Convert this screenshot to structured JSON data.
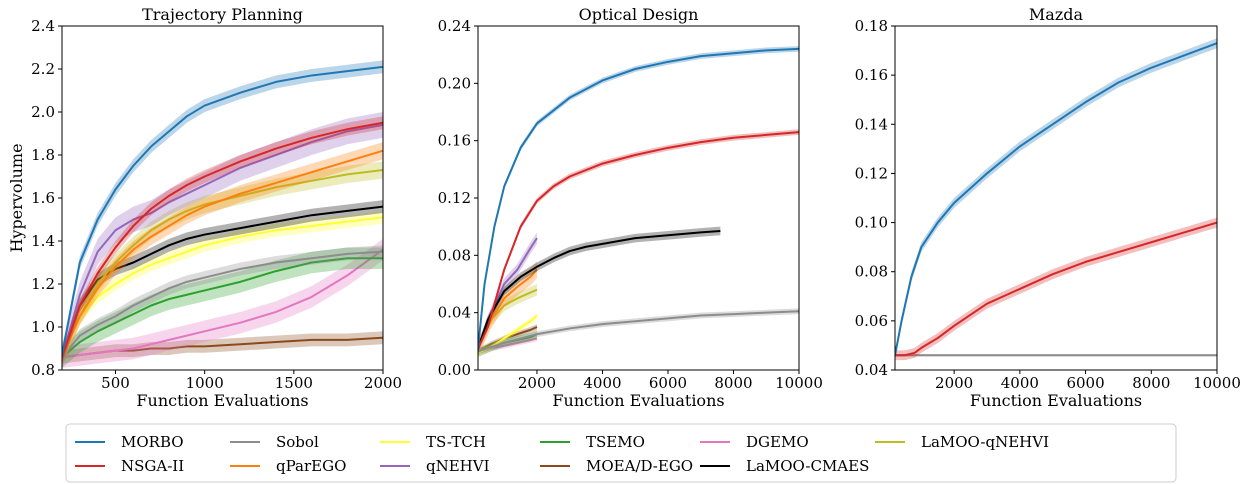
{
  "colors": {
    "MORBO": "#1f77b4",
    "NSGA-II": "#d62728",
    "Sobol": "#8c8c8c",
    "qParEGO": "#ff7f0e",
    "TS-TCH": "#ffff33",
    "qNEHVI": "#9467bd",
    "TSEMO": "#2ca02c",
    "MOEA/D-EGO": "#8c4a1a",
    "DGEMO": "#e377c2",
    "LaMOO-CMAES": "#000000",
    "LaMOO-qNEHVI": "#bcbd22"
  },
  "legend": {
    "placement": "bottom",
    "entries": [
      "MORBO",
      "NSGA-II",
      "Sobol",
      "qParEGO",
      "TS-TCH",
      "qNEHVI",
      "TSEMO",
      "MOEA/D-EGO",
      "DGEMO",
      "LaMOO-CMAES",
      "LaMOO-qNEHVI"
    ]
  },
  "chart_data": [
    {
      "type": "line",
      "title": "Trajectory Planning",
      "xlabel": "Function Evaluations",
      "ylabel": "Hypervolume",
      "xlim": [
        200,
        2000
      ],
      "ylim": [
        0.8,
        2.4
      ],
      "xticks": [
        500,
        1000,
        1500,
        2000
      ],
      "xtick_labels": [
        "500",
        "1000",
        "1500",
        "2000"
      ],
      "yticks": [
        0.8,
        1.0,
        1.2,
        1.4,
        1.6,
        1.8,
        2.0,
        2.2,
        2.4
      ],
      "ytick_labels": [
        "0.8",
        "1.0",
        "1.2",
        "1.4",
        "1.6",
        "1.8",
        "2.0",
        "2.2",
        "2.4"
      ],
      "grid": false,
      "series": [
        {
          "name": "MORBO",
          "band": 0.03,
          "x": [
            200,
            300,
            400,
            500,
            600,
            700,
            800,
            900,
            1000,
            1200,
            1400,
            1600,
            1800,
            2000
          ],
          "y": [
            0.87,
            1.3,
            1.5,
            1.64,
            1.75,
            1.84,
            1.91,
            1.98,
            2.03,
            2.09,
            2.14,
            2.17,
            2.19,
            2.21
          ]
        },
        {
          "name": "NSGA-II",
          "band": 0.03,
          "x": [
            200,
            300,
            400,
            500,
            600,
            700,
            800,
            900,
            1000,
            1200,
            1400,
            1600,
            1800,
            2000
          ],
          "y": [
            0.86,
            1.1,
            1.25,
            1.37,
            1.47,
            1.55,
            1.61,
            1.66,
            1.7,
            1.77,
            1.83,
            1.88,
            1.92,
            1.95
          ]
        },
        {
          "name": "qNEHVI",
          "band": 0.06,
          "x": [
            200,
            300,
            400,
            500,
            600,
            700,
            800,
            900,
            1000,
            1200,
            1400,
            1600,
            1800,
            2000
          ],
          "y": [
            0.86,
            1.15,
            1.35,
            1.45,
            1.5,
            1.53,
            1.58,
            1.62,
            1.66,
            1.74,
            1.8,
            1.86,
            1.91,
            1.94
          ]
        },
        {
          "name": "qParEGO",
          "band": 0.04,
          "x": [
            200,
            300,
            400,
            500,
            600,
            700,
            800,
            900,
            1000,
            1200,
            1400,
            1600,
            1800,
            2000
          ],
          "y": [
            0.86,
            1.05,
            1.18,
            1.28,
            1.36,
            1.42,
            1.47,
            1.52,
            1.56,
            1.62,
            1.67,
            1.72,
            1.77,
            1.82
          ]
        },
        {
          "name": "LaMOO-qNEHVI",
          "band": 0.04,
          "x": [
            200,
            300,
            400,
            500,
            600,
            700,
            800,
            900,
            1000,
            1200,
            1400,
            1600,
            1800,
            2000
          ],
          "y": [
            0.86,
            1.05,
            1.2,
            1.3,
            1.38,
            1.45,
            1.5,
            1.54,
            1.57,
            1.61,
            1.65,
            1.68,
            1.71,
            1.73
          ]
        },
        {
          "name": "LaMOO-CMAES",
          "band": 0.03,
          "x": [
            200,
            300,
            400,
            500,
            600,
            700,
            800,
            900,
            1000,
            1200,
            1400,
            1600,
            1800,
            2000
          ],
          "y": [
            0.86,
            1.1,
            1.22,
            1.27,
            1.3,
            1.34,
            1.38,
            1.41,
            1.43,
            1.46,
            1.49,
            1.52,
            1.54,
            1.56
          ]
        },
        {
          "name": "TS-TCH",
          "band": 0.03,
          "x": [
            200,
            300,
            400,
            500,
            600,
            700,
            800,
            900,
            1000,
            1200,
            1400,
            1600,
            1800,
            2000
          ],
          "y": [
            0.86,
            1.05,
            1.14,
            1.2,
            1.25,
            1.29,
            1.32,
            1.35,
            1.38,
            1.42,
            1.45,
            1.47,
            1.49,
            1.51
          ]
        },
        {
          "name": "Sobol",
          "band": 0.03,
          "x": [
            200,
            300,
            400,
            500,
            600,
            700,
            800,
            900,
            1000,
            1200,
            1400,
            1600,
            1800,
            2000
          ],
          "y": [
            0.86,
            0.96,
            1.01,
            1.05,
            1.1,
            1.14,
            1.18,
            1.21,
            1.23,
            1.27,
            1.3,
            1.32,
            1.34,
            1.35
          ]
        },
        {
          "name": "TSEMO",
          "band": 0.05,
          "x": [
            200,
            300,
            400,
            500,
            600,
            700,
            800,
            900,
            1000,
            1200,
            1400,
            1600,
            1800,
            2000
          ],
          "y": [
            0.86,
            0.93,
            0.98,
            1.02,
            1.06,
            1.1,
            1.13,
            1.15,
            1.17,
            1.21,
            1.26,
            1.3,
            1.32,
            1.32
          ]
        },
        {
          "name": "DGEMO",
          "band": 0.05,
          "x": [
            200,
            300,
            400,
            500,
            600,
            700,
            800,
            900,
            1000,
            1200,
            1400,
            1600,
            1800,
            2000
          ],
          "y": [
            0.86,
            0.87,
            0.88,
            0.89,
            0.9,
            0.92,
            0.94,
            0.96,
            0.98,
            1.02,
            1.07,
            1.14,
            1.24,
            1.36
          ]
        },
        {
          "name": "MOEA/D-EGO",
          "band": 0.03,
          "x": [
            200,
            300,
            400,
            500,
            600,
            700,
            800,
            900,
            1000,
            1200,
            1400,
            1600,
            1800,
            2000
          ],
          "y": [
            0.86,
            0.87,
            0.88,
            0.89,
            0.89,
            0.9,
            0.9,
            0.91,
            0.91,
            0.92,
            0.93,
            0.94,
            0.94,
            0.95
          ]
        }
      ]
    },
    {
      "type": "line",
      "title": "Optical Design",
      "xlabel": "Function Evaluations",
      "ylabel": "",
      "xlim": [
        200,
        10000
      ],
      "ylim": [
        0.0,
        0.24
      ],
      "xticks": [
        2000,
        4000,
        6000,
        8000,
        10000
      ],
      "xtick_labels": [
        "2000",
        "4000",
        "6000",
        "8000",
        "10000"
      ],
      "yticks": [
        0.0,
        0.04,
        0.08,
        0.12,
        0.16,
        0.2,
        0.24
      ],
      "ytick_labels": [
        "0.00",
        "0.04",
        "0.08",
        "0.12",
        "0.16",
        "0.20",
        "0.24"
      ],
      "grid": false,
      "series": [
        {
          "name": "MORBO",
          "band": 0.002,
          "x": [
            200,
            400,
            700,
            1000,
            1500,
            2000,
            3000,
            4000,
            5000,
            6000,
            7000,
            8000,
            9000,
            10000
          ],
          "y": [
            0.015,
            0.06,
            0.1,
            0.128,
            0.155,
            0.172,
            0.19,
            0.202,
            0.21,
            0.215,
            0.219,
            0.221,
            0.223,
            0.224
          ]
        },
        {
          "name": "NSGA-II",
          "band": 0.002,
          "x": [
            200,
            500,
            1000,
            1500,
            2000,
            2500,
            3000,
            4000,
            5000,
            6000,
            7000,
            8000,
            9000,
            10000
          ],
          "y": [
            0.015,
            0.03,
            0.07,
            0.1,
            0.118,
            0.128,
            0.135,
            0.144,
            0.15,
            0.155,
            0.159,
            0.162,
            0.164,
            0.166
          ]
        },
        {
          "name": "LaMOO-CMAES",
          "band": 0.003,
          "x": [
            200,
            500,
            1000,
            1500,
            2000,
            2500,
            3000,
            3500,
            4000,
            5000,
            6000,
            7000,
            7600
          ],
          "y": [
            0.015,
            0.035,
            0.055,
            0.065,
            0.072,
            0.078,
            0.083,
            0.086,
            0.088,
            0.092,
            0.094,
            0.096,
            0.097
          ]
        },
        {
          "name": "Sobol",
          "band": 0.002,
          "x": [
            200,
            1000,
            2000,
            3000,
            4000,
            5000,
            6000,
            7000,
            8000,
            9000,
            10000
          ],
          "y": [
            0.013,
            0.019,
            0.025,
            0.029,
            0.032,
            0.034,
            0.036,
            0.038,
            0.039,
            0.04,
            0.041
          ]
        },
        {
          "name": "qNEHVI",
          "band": 0.004,
          "x": [
            200,
            600,
            1000,
            1400,
            1800,
            2000
          ],
          "y": [
            0.015,
            0.04,
            0.06,
            0.07,
            0.085,
            0.092
          ]
        },
        {
          "name": "qParEGO",
          "band": 0.006,
          "x": [
            200,
            600,
            1000,
            1400,
            1800,
            2000
          ],
          "y": [
            0.015,
            0.035,
            0.05,
            0.058,
            0.065,
            0.07
          ]
        },
        {
          "name": "LaMOO-qNEHVI",
          "band": 0.004,
          "x": [
            200,
            600,
            1000,
            1400,
            1800,
            2000
          ],
          "y": [
            0.015,
            0.035,
            0.045,
            0.05,
            0.054,
            0.056
          ]
        },
        {
          "name": "TS-TCH",
          "band": 0.002,
          "x": [
            200,
            600,
            1000,
            1400,
            1800,
            2000
          ],
          "y": [
            0.012,
            0.016,
            0.022,
            0.028,
            0.034,
            0.038
          ]
        },
        {
          "name": "TSEMO",
          "band": 0.003,
          "x": [
            200,
            600,
            1000,
            1400,
            1800,
            2000
          ],
          "y": [
            0.012,
            0.016,
            0.019,
            0.021,
            0.023,
            0.025
          ]
        },
        {
          "name": "DGEMO",
          "band": 0.002,
          "x": [
            200,
            600,
            1000,
            1400,
            1800,
            2000
          ],
          "y": [
            0.012,
            0.015,
            0.017,
            0.019,
            0.021,
            0.022
          ]
        },
        {
          "name": "MOEA/D-EGO",
          "band": 0.002,
          "x": [
            200,
            600,
            1000,
            1400,
            1800,
            2000
          ],
          "y": [
            0.013,
            0.018,
            0.022,
            0.025,
            0.028,
            0.03
          ]
        }
      ]
    },
    {
      "type": "line",
      "title": "Mazda",
      "xlabel": "Function Evaluations",
      "ylabel": "",
      "xlim": [
        200,
        10000
      ],
      "ylim": [
        0.04,
        0.18
      ],
      "xticks": [
        2000,
        4000,
        6000,
        8000,
        10000
      ],
      "xtick_labels": [
        "2000",
        "4000",
        "6000",
        "8000",
        "10000"
      ],
      "yticks": [
        0.04,
        0.06,
        0.08,
        0.1,
        0.12,
        0.14,
        0.16,
        0.18
      ],
      "ytick_labels": [
        "0.04",
        "0.06",
        "0.08",
        "0.10",
        "0.12",
        "0.14",
        "0.16",
        "0.18"
      ],
      "grid": false,
      "series": [
        {
          "name": "MORBO",
          "band": 0.002,
          "x": [
            200,
            400,
            700,
            1000,
            1500,
            2000,
            3000,
            4000,
            5000,
            6000,
            7000,
            8000,
            9000,
            10000
          ],
          "y": [
            0.046,
            0.06,
            0.078,
            0.09,
            0.1,
            0.108,
            0.12,
            0.131,
            0.14,
            0.149,
            0.157,
            0.163,
            0.168,
            0.173
          ]
        },
        {
          "name": "NSGA-II",
          "band": 0.002,
          "x": [
            200,
            500,
            800,
            1000,
            1500,
            2000,
            3000,
            4000,
            5000,
            6000,
            7000,
            8000,
            9000,
            10000
          ],
          "y": [
            0.046,
            0.046,
            0.047,
            0.049,
            0.053,
            0.058,
            0.067,
            0.073,
            0.079,
            0.084,
            0.088,
            0.092,
            0.096,
            0.1
          ]
        },
        {
          "name": "Sobol",
          "band": 0.0005,
          "x": [
            200,
            10000
          ],
          "y": [
            0.046,
            0.046
          ]
        }
      ]
    }
  ]
}
